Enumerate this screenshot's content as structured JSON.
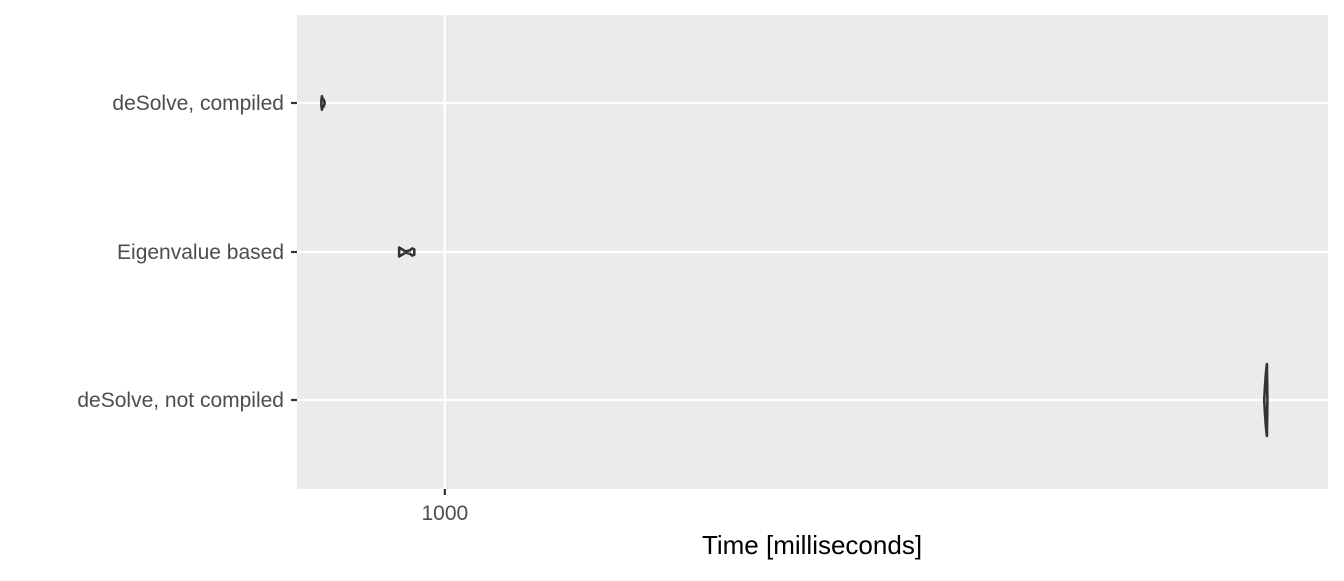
{
  "chart_data": {
    "type": "violin",
    "orientation": "horizontal",
    "title": "",
    "xlabel": "Time [milliseconds]",
    "ylabel": "",
    "x_scale": "log10",
    "xlim": [
      686,
      9500
    ],
    "x_ticks": [
      1000
    ],
    "x_tick_labels": [
      "1000"
    ],
    "categories": [
      "deSolve, compiled",
      "Eigenvalue based",
      "deSolve, not compiled"
    ],
    "grid": true,
    "legend": "none",
    "colors": {
      "panel_background": "#ebebeb",
      "grid_line": "#ffffff",
      "violin_outline": "#333333",
      "tick_label": "#4d4d4d",
      "axis_title": "#000000"
    },
    "violins": [
      {
        "category": "deSolve, compiled",
        "min": 730,
        "max": 736,
        "median": 733,
        "profile": [
          {
            "x": 736,
            "w": 0.01
          },
          {
            "x": 735,
            "w": 0.05
          },
          {
            "x": 734,
            "w": 0.08
          },
          {
            "x": 733,
            "w": 0.08
          },
          {
            "x": 732,
            "w": 0.1
          },
          {
            "x": 731,
            "w": 0.15
          },
          {
            "x": 730,
            "w": 0.05
          }
        ]
      },
      {
        "category": "Eigenvalue based",
        "min": 890,
        "max": 925,
        "median": 905,
        "profile": [
          {
            "x": 890,
            "w": 0.1
          },
          {
            "x": 895,
            "w": 0.07
          },
          {
            "x": 905,
            "w": 0.01
          },
          {
            "x": 915,
            "w": 0.04
          },
          {
            "x": 920,
            "w": 0.08
          },
          {
            "x": 925,
            "w": 0.06
          }
        ]
      },
      {
        "category": "deSolve, not compiled",
        "min": 8075,
        "max": 8140,
        "median": 8110,
        "profile": [
          {
            "x": 8140,
            "w": 0.02
          },
          {
            "x": 8130,
            "w": 0.8
          },
          {
            "x": 8110,
            "w": 0.6
          },
          {
            "x": 8090,
            "w": 0.3
          },
          {
            "x": 8080,
            "w": 0.1
          },
          {
            "x": 8075,
            "w": 0.01
          }
        ]
      }
    ]
  }
}
